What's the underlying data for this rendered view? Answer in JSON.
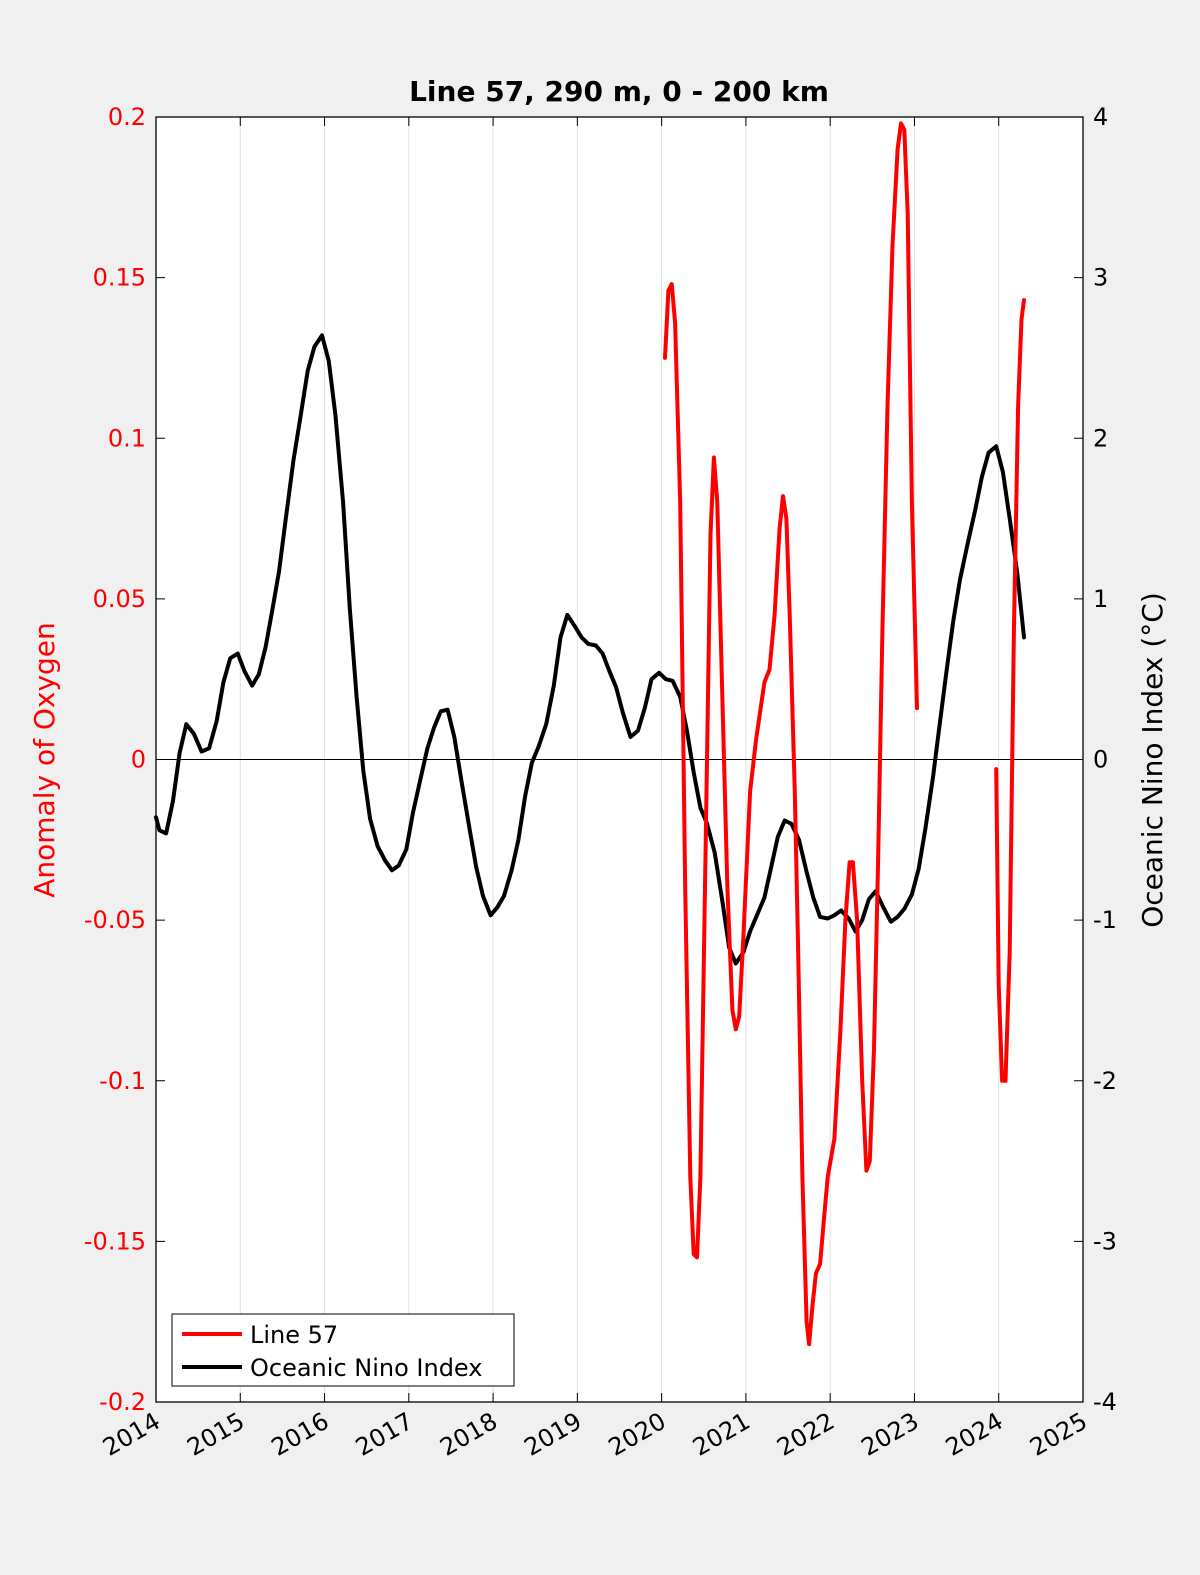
{
  "colors": {
    "background": "#f0f0f0",
    "plot_background": "#ffffff",
    "line57": "#ff0000",
    "oni": "#000000",
    "left_axis": "#ff0000",
    "right_axis": "#000000",
    "grid": "#e0e0e0"
  },
  "chart_data": {
    "type": "line",
    "title": "Line 57, 290 m, 0 - 200 km",
    "xlabel": "",
    "ylabel_left": "Anomaly of Oxygen",
    "ylabel_right": "Oceanic Nino Index (°C)",
    "xlim": [
      2014,
      2025
    ],
    "ylim_left": [
      -0.2,
      0.2
    ],
    "ylim_right": [
      -4,
      4
    ],
    "x_ticks": [
      "2014",
      "2015",
      "2016",
      "2017",
      "2018",
      "2019",
      "2020",
      "2021",
      "2022",
      "2023",
      "2024",
      "2025"
    ],
    "y_ticks_left": [
      "-0.2",
      "-0.15",
      "-0.1",
      "-0.05",
      "0",
      "0.05",
      "0.1",
      "0.15",
      "0.2"
    ],
    "y_ticks_right": [
      "-4",
      "-3",
      "-2",
      "-1",
      "0",
      "1",
      "2",
      "3",
      "4"
    ],
    "grid": "vertical",
    "zero_line": true,
    "legend_placement": "bottom-left",
    "series": [
      {
        "name": "Line 57",
        "axis": "left",
        "color": "#ff0000",
        "segments": [
          [
            [
              2020.04,
              0.125
            ],
            [
              2020.08,
              0.146
            ],
            [
              2020.12,
              0.148
            ],
            [
              2020.16,
              0.136
            ],
            [
              2020.22,
              0.08
            ],
            [
              2020.28,
              -0.04
            ],
            [
              2020.34,
              -0.13
            ],
            [
              2020.38,
              -0.154
            ],
            [
              2020.42,
              -0.155
            ],
            [
              2020.46,
              -0.13
            ],
            [
              2020.52,
              -0.03
            ],
            [
              2020.58,
              0.07
            ],
            [
              2020.62,
              0.094
            ],
            [
              2020.66,
              0.08
            ],
            [
              2020.72,
              0.02
            ],
            [
              2020.78,
              -0.04
            ],
            [
              2020.84,
              -0.078
            ],
            [
              2020.88,
              -0.084
            ],
            [
              2020.92,
              -0.08
            ],
            [
              2020.97,
              -0.055
            ],
            [
              2021.05,
              -0.01
            ],
            [
              2021.12,
              0.006
            ],
            [
              2021.22,
              0.024
            ],
            [
              2021.28,
              0.028
            ],
            [
              2021.34,
              0.045
            ],
            [
              2021.4,
              0.072
            ],
            [
              2021.44,
              0.082
            ],
            [
              2021.48,
              0.075
            ],
            [
              2021.52,
              0.045
            ],
            [
              2021.58,
              -0.01
            ],
            [
              2021.62,
              -0.06
            ],
            [
              2021.67,
              -0.13
            ],
            [
              2021.72,
              -0.175
            ],
            [
              2021.75,
              -0.182
            ],
            [
              2021.79,
              -0.17
            ],
            [
              2021.83,
              -0.16
            ],
            [
              2021.88,
              -0.157
            ],
            [
              2021.92,
              -0.145
            ],
            [
              2021.97,
              -0.13
            ],
            [
              2022.05,
              -0.118
            ],
            [
              2022.12,
              -0.085
            ],
            [
              2022.18,
              -0.05
            ],
            [
              2022.23,
              -0.032
            ],
            [
              2022.27,
              -0.032
            ],
            [
              2022.32,
              -0.05
            ],
            [
              2022.38,
              -0.1
            ],
            [
              2022.43,
              -0.128
            ],
            [
              2022.47,
              -0.125
            ],
            [
              2022.52,
              -0.09
            ],
            [
              2022.57,
              -0.03
            ],
            [
              2022.62,
              0.04
            ],
            [
              2022.68,
              0.11
            ],
            [
              2022.74,
              0.16
            ],
            [
              2022.8,
              0.19
            ],
            [
              2022.84,
              0.198
            ],
            [
              2022.88,
              0.196
            ],
            [
              2022.92,
              0.17
            ],
            [
              2022.97,
              0.08
            ],
            [
              2023.03,
              0.016
            ]
          ],
          [
            [
              2023.97,
              -0.003
            ],
            [
              2024.0,
              -0.07
            ],
            [
              2024.04,
              -0.1
            ],
            [
              2024.08,
              -0.1
            ],
            [
              2024.13,
              -0.06
            ],
            [
              2024.18,
              0.04
            ],
            [
              2024.23,
              0.11
            ],
            [
              2024.27,
              0.137
            ],
            [
              2024.3,
              0.143
            ]
          ]
        ]
      },
      {
        "name": "Oceanic Nino Index",
        "axis": "right",
        "color": "#000000",
        "segments": [
          [
            [
              2014.0,
              -0.36
            ],
            [
              2014.04,
              -0.44
            ],
            [
              2014.12,
              -0.46
            ],
            [
              2014.2,
              -0.26
            ],
            [
              2014.28,
              0.04
            ],
            [
              2014.36,
              0.22
            ],
            [
              2014.45,
              0.16
            ],
            [
              2014.54,
              0.05
            ],
            [
              2014.63,
              0.07
            ],
            [
              2014.72,
              0.24
            ],
            [
              2014.8,
              0.48
            ],
            [
              2014.88,
              0.63
            ],
            [
              2014.97,
              0.66
            ],
            [
              2015.05,
              0.55
            ],
            [
              2015.14,
              0.46
            ],
            [
              2015.22,
              0.53
            ],
            [
              2015.3,
              0.7
            ],
            [
              2015.38,
              0.93
            ],
            [
              2015.46,
              1.17
            ],
            [
              2015.54,
              1.5
            ],
            [
              2015.63,
              1.86
            ],
            [
              2015.72,
              2.15
            ],
            [
              2015.8,
              2.42
            ],
            [
              2015.88,
              2.57
            ],
            [
              2015.97,
              2.64
            ],
            [
              2016.05,
              2.48
            ],
            [
              2016.13,
              2.14
            ],
            [
              2016.22,
              1.6
            ],
            [
              2016.3,
              0.94
            ],
            [
              2016.38,
              0.39
            ],
            [
              2016.46,
              -0.07
            ],
            [
              2016.54,
              -0.37
            ],
            [
              2016.63,
              -0.54
            ],
            [
              2016.72,
              -0.63
            ],
            [
              2016.8,
              -0.69
            ],
            [
              2016.88,
              -0.66
            ],
            [
              2016.97,
              -0.56
            ],
            [
              2017.05,
              -0.33
            ],
            [
              2017.13,
              -0.14
            ],
            [
              2017.22,
              0.07
            ],
            [
              2017.3,
              0.2
            ],
            [
              2017.38,
              0.3
            ],
            [
              2017.46,
              0.31
            ],
            [
              2017.54,
              0.14
            ],
            [
              2017.63,
              -0.15
            ],
            [
              2017.72,
              -0.43
            ],
            [
              2017.8,
              -0.67
            ],
            [
              2017.88,
              -0.85
            ],
            [
              2017.97,
              -0.97
            ],
            [
              2018.05,
              -0.92
            ],
            [
              2018.13,
              -0.85
            ],
            [
              2018.22,
              -0.69
            ],
            [
              2018.3,
              -0.5
            ],
            [
              2018.38,
              -0.23
            ],
            [
              2018.46,
              -0.02
            ],
            [
              2018.54,
              0.08
            ],
            [
              2018.63,
              0.22
            ],
            [
              2018.72,
              0.46
            ],
            [
              2018.8,
              0.76
            ],
            [
              2018.88,
              0.9
            ],
            [
              2018.97,
              0.83
            ],
            [
              2019.05,
              0.76
            ],
            [
              2019.13,
              0.72
            ],
            [
              2019.22,
              0.71
            ],
            [
              2019.3,
              0.66
            ],
            [
              2019.38,
              0.55
            ],
            [
              2019.46,
              0.45
            ],
            [
              2019.54,
              0.29
            ],
            [
              2019.63,
              0.14
            ],
            [
              2019.72,
              0.18
            ],
            [
              2019.8,
              0.32
            ],
            [
              2019.88,
              0.5
            ],
            [
              2019.97,
              0.54
            ],
            [
              2020.05,
              0.5
            ],
            [
              2020.13,
              0.49
            ],
            [
              2020.22,
              0.39
            ],
            [
              2020.3,
              0.18
            ],
            [
              2020.38,
              -0.08
            ],
            [
              2020.46,
              -0.3
            ],
            [
              2020.54,
              -0.4
            ],
            [
              2020.63,
              -0.58
            ],
            [
              2020.72,
              -0.88
            ],
            [
              2020.8,
              -1.17
            ],
            [
              2020.88,
              -1.27
            ],
            [
              2020.97,
              -1.2
            ],
            [
              2021.05,
              -1.07
            ],
            [
              2021.13,
              -0.97
            ],
            [
              2021.22,
              -0.86
            ],
            [
              2021.3,
              -0.67
            ],
            [
              2021.38,
              -0.48
            ],
            [
              2021.46,
              -0.38
            ],
            [
              2021.54,
              -0.4
            ],
            [
              2021.63,
              -0.5
            ],
            [
              2021.72,
              -0.7
            ],
            [
              2021.8,
              -0.86
            ],
            [
              2021.88,
              -0.98
            ],
            [
              2021.97,
              -0.99
            ],
            [
              2022.05,
              -0.97
            ],
            [
              2022.13,
              -0.94
            ],
            [
              2022.22,
              -0.99
            ],
            [
              2022.3,
              -1.07
            ],
            [
              2022.38,
              -1.0
            ],
            [
              2022.46,
              -0.87
            ],
            [
              2022.54,
              -0.82
            ],
            [
              2022.63,
              -0.92
            ],
            [
              2022.72,
              -1.01
            ],
            [
              2022.8,
              -0.98
            ],
            [
              2022.88,
              -0.93
            ],
            [
              2022.97,
              -0.84
            ],
            [
              2023.05,
              -0.68
            ],
            [
              2023.13,
              -0.43
            ],
            [
              2023.22,
              -0.11
            ],
            [
              2023.3,
              0.22
            ],
            [
              2023.38,
              0.55
            ],
            [
              2023.46,
              0.86
            ],
            [
              2023.54,
              1.12
            ],
            [
              2023.63,
              1.34
            ],
            [
              2023.72,
              1.55
            ],
            [
              2023.8,
              1.76
            ],
            [
              2023.88,
              1.91
            ],
            [
              2023.97,
              1.95
            ],
            [
              2024.05,
              1.79
            ],
            [
              2024.13,
              1.5
            ],
            [
              2024.22,
              1.16
            ],
            [
              2024.3,
              0.76
            ]
          ]
        ]
      }
    ]
  }
}
